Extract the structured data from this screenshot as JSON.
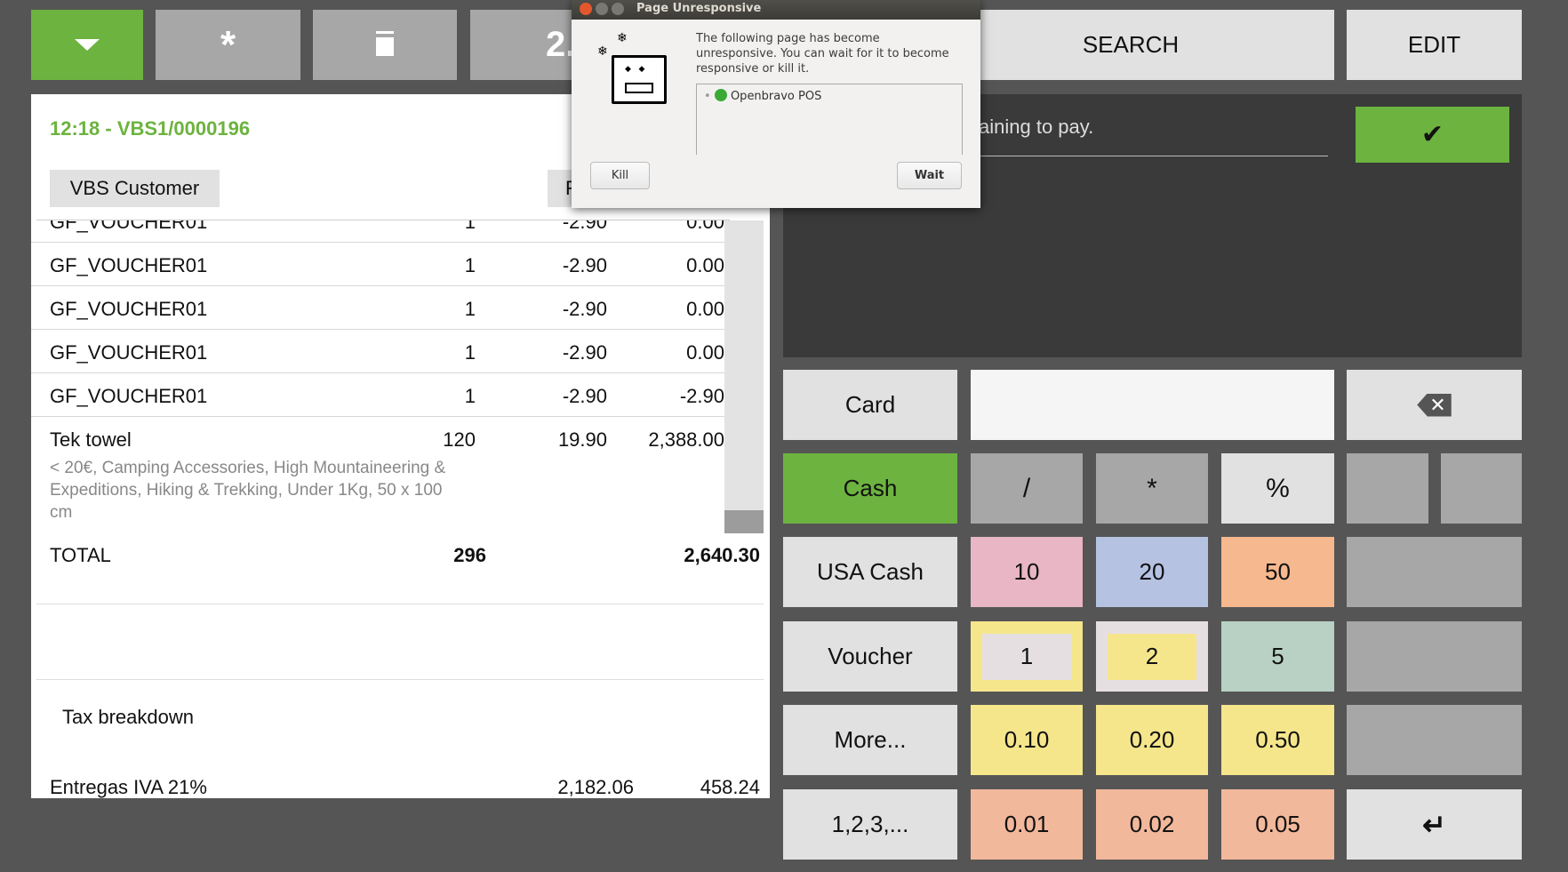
{
  "toolbar": {
    "menu_icon": "caret-down-icon",
    "new_icon": "asterisk-icon",
    "delete_icon": "trash-icon",
    "total_partial": "2.",
    "search": "SEARCH",
    "edit": "EDIT"
  },
  "ticket": {
    "header": "12:18 - VBS1/0000196",
    "customer": "VBS Customer",
    "partial_button": "F",
    "lines": [
      {
        "name": "GF_VOUCHER01",
        "qty": "1",
        "price": "-2.90",
        "total": "0.00"
      },
      {
        "name": "GF_VOUCHER01",
        "qty": "1",
        "price": "-2.90",
        "total": "0.00"
      },
      {
        "name": "GF_VOUCHER01",
        "qty": "1",
        "price": "-2.90",
        "total": "0.00"
      },
      {
        "name": "GF_VOUCHER01",
        "qty": "1",
        "price": "-2.90",
        "total": "0.00"
      },
      {
        "name": "GF_VOUCHER01",
        "qty": "1",
        "price": "-2.90",
        "total": "-2.90"
      },
      {
        "name": "Tek towel",
        "qty": "120",
        "price": "19.90",
        "total": "2,388.00",
        "desc": "< 20€, Camping Accessories, High Mountaineering & Expeditions, Hiking & Trekking, Under 1Kg, 50 x 100 cm"
      }
    ],
    "total_label": "TOTAL",
    "total_qty": "296",
    "total_amount": "2,640.30",
    "tax_title": "Tax breakdown",
    "tax": {
      "name": "Entregas IVA 21%",
      "base": "2,182.06",
      "amount": "458.24"
    }
  },
  "payment": {
    "remaining_text": "aining to pay.",
    "input_value": ""
  },
  "keypad": {
    "methods": [
      "Card",
      "Cash",
      "USA Cash",
      "Voucher",
      "More...",
      "1,2,3,..."
    ],
    "ops": [
      "/",
      "*",
      "%"
    ],
    "notes": [
      "10",
      "20",
      "50"
    ],
    "coins1": [
      "1",
      "2",
      "5"
    ],
    "coins2": [
      "0.10",
      "0.20",
      "0.50"
    ],
    "coins3": [
      "0.01",
      "0.02",
      "0.05"
    ]
  },
  "dialog": {
    "title": "Page Unresponsive",
    "message": "The following page has become unresponsive. You can wait for it to become responsive or kill it.",
    "page": "Openbravo POS",
    "kill": "Kill",
    "wait": "Wait"
  },
  "colors": {
    "accent": "#6cb33f",
    "pink": "#e8b6c4",
    "blue": "#b6c2e2",
    "orange": "#f6b88e",
    "yellow": "#f5e68c",
    "mint": "#b8d1c4",
    "salmon": "#f2b89b"
  }
}
